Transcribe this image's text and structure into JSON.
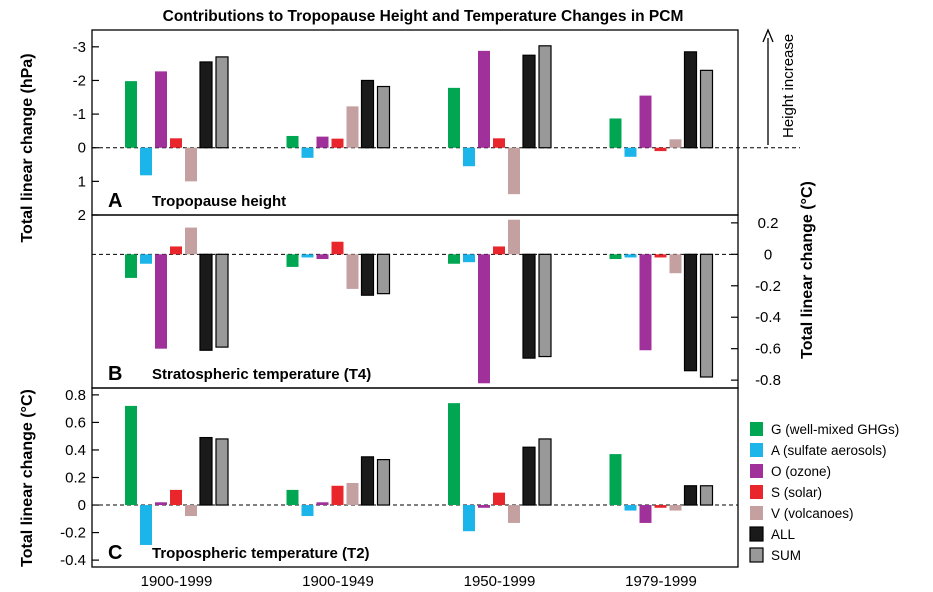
{
  "chart_data": {
    "type": "bar",
    "title": "Contributions to Tropopause Height and Temperature Changes in PCM",
    "categories": [
      "1900-1999",
      "1900-1949",
      "1950-1999",
      "1979-1999"
    ],
    "legend": [
      {
        "key": "G",
        "label": "G (well-mixed GHGs)",
        "color": "#00a651"
      },
      {
        "key": "A",
        "label": "A (sulfate aerosols)",
        "color": "#1cb5ea"
      },
      {
        "key": "O",
        "label": "O (ozone)",
        "color": "#a0309a"
      },
      {
        "key": "S",
        "label": "S (solar)",
        "color": "#e8262b"
      },
      {
        "key": "V",
        "label": "V (volcanoes)",
        "color": "#c4a0a0"
      },
      {
        "key": "ALL",
        "label": "ALL",
        "color": "#1a1a1a"
      },
      {
        "key": "SUM",
        "label": "SUM",
        "color": "#999999"
      }
    ],
    "legend_position": "right",
    "arrow_label": "Height increase",
    "panels": [
      {
        "letter": "A",
        "name": "Tropopause height",
        "ylabel": "Total linear change (hPa)",
        "ylim": [
          2,
          -3.5
        ],
        "yticks": [
          -3,
          -2,
          -1,
          0,
          1,
          2
        ],
        "tick_labels": [
          "-3",
          "-2",
          "-1",
          "0",
          "1",
          "2"
        ],
        "inverted": true,
        "axis_side": "left",
        "series": [
          {
            "name": "G",
            "values": [
              -1.98,
              -0.35,
              -1.78,
              -0.87
            ]
          },
          {
            "name": "A",
            "values": [
              0.82,
              0.3,
              0.55,
              0.27
            ]
          },
          {
            "name": "O",
            "values": [
              -2.27,
              -0.33,
              -2.88,
              -1.55
            ]
          },
          {
            "name": "S",
            "values": [
              -0.28,
              -0.27,
              -0.28,
              0.1
            ]
          },
          {
            "name": "V",
            "values": [
              1.0,
              -1.23,
              1.38,
              -0.25
            ]
          },
          {
            "name": "ALL",
            "values": [
              -2.55,
              -2.0,
              -2.75,
              -2.85
            ]
          },
          {
            "name": "SUM",
            "values": [
              -2.7,
              -1.82,
              -3.03,
              -2.3
            ]
          }
        ]
      },
      {
        "letter": "B",
        "name": "Stratospheric temperature (T4)",
        "ylabel": "Total linear change (°C)",
        "ylim": [
          -0.85,
          0.25
        ],
        "yticks": [
          0.2,
          0,
          -0.2,
          -0.4,
          -0.6,
          -0.8
        ],
        "tick_labels": [
          "0.2",
          "0",
          "-0.2",
          "-0.4",
          "-0.6",
          "-0.8"
        ],
        "inverted": false,
        "axis_side": "right",
        "series": [
          {
            "name": "G",
            "values": [
              -0.15,
              -0.08,
              -0.06,
              -0.03
            ]
          },
          {
            "name": "A",
            "values": [
              -0.06,
              -0.02,
              -0.05,
              -0.02
            ]
          },
          {
            "name": "O",
            "values": [
              -0.6,
              -0.03,
              -0.82,
              -0.61
            ]
          },
          {
            "name": "S",
            "values": [
              0.05,
              0.08,
              0.05,
              -0.02
            ]
          },
          {
            "name": "V",
            "values": [
              0.17,
              -0.22,
              0.22,
              -0.12
            ]
          },
          {
            "name": "ALL",
            "values": [
              -0.61,
              -0.26,
              -0.66,
              -0.74
            ]
          },
          {
            "name": "SUM",
            "values": [
              -0.59,
              -0.25,
              -0.65,
              -0.78
            ]
          }
        ]
      },
      {
        "letter": "C",
        "name": "Tropospheric temperature (T2)",
        "ylabel": "Total linear change (°C)",
        "ylim": [
          -0.45,
          0.85
        ],
        "yticks": [
          0.8,
          0.6,
          0.4,
          0.2,
          0,
          -0.2,
          -0.4
        ],
        "tick_labels": [
          "0.8",
          "0.6",
          "0.4",
          "0.2",
          "0",
          "-0.2",
          "-0.4"
        ],
        "inverted": false,
        "axis_side": "left",
        "series": [
          {
            "name": "G",
            "values": [
              0.72,
              0.11,
              0.74,
              0.37
            ]
          },
          {
            "name": "A",
            "values": [
              -0.29,
              -0.08,
              -0.19,
              -0.04
            ]
          },
          {
            "name": "O",
            "values": [
              0.02,
              0.02,
              -0.02,
              -0.13
            ]
          },
          {
            "name": "S",
            "values": [
              0.11,
              0.14,
              0.09,
              -0.02
            ]
          },
          {
            "name": "V",
            "values": [
              -0.08,
              0.16,
              -0.13,
              -0.04
            ]
          },
          {
            "name": "ALL",
            "values": [
              0.49,
              0.35,
              0.42,
              0.14
            ]
          },
          {
            "name": "SUM",
            "values": [
              0.48,
              0.33,
              0.48,
              0.14
            ]
          }
        ]
      }
    ]
  }
}
